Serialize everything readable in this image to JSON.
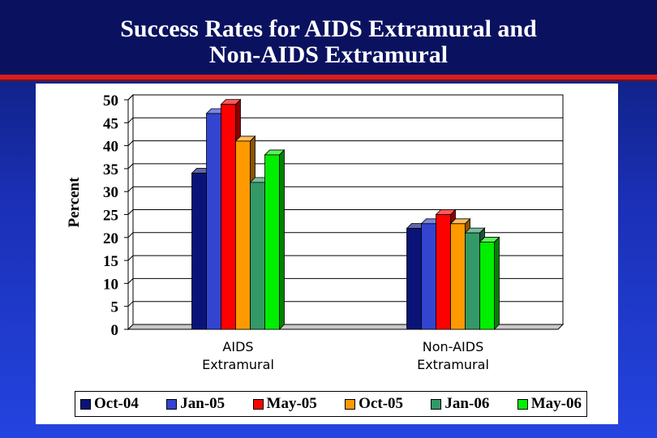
{
  "header": {
    "title_line1": "Success Rates for AIDS Extramural and",
    "title_line2": "Non-AIDS Extramural"
  },
  "colors": {
    "background": "#1a2fb5",
    "title_bar": "#0a1260",
    "rule": "#d81e1e"
  },
  "chart_data": {
    "type": "bar",
    "style": "3d",
    "ylabel": "Percent",
    "xlabel": "",
    "ylim": [
      0,
      50
    ],
    "yticks": [
      0,
      5,
      10,
      15,
      20,
      25,
      30,
      35,
      40,
      45,
      50
    ],
    "grid": true,
    "legend_position": "bottom",
    "categories": [
      [
        "AIDS",
        "Extramural"
      ],
      [
        "Non-AIDS",
        "Extramural"
      ]
    ],
    "series": [
      {
        "name": "Oct-04",
        "color": "#0a1478",
        "values": [
          34,
          22
        ]
      },
      {
        "name": "Jan-05",
        "color": "#3344d0",
        "values": [
          47,
          23
        ]
      },
      {
        "name": "May-05",
        "color": "#ff0000",
        "values": [
          49,
          25
        ]
      },
      {
        "name": "Oct-05",
        "color": "#ff9900",
        "values": [
          41,
          23
        ]
      },
      {
        "name": "Jan-06",
        "color": "#339966",
        "values": [
          32,
          21
        ]
      },
      {
        "name": "May-06",
        "color": "#00ee00",
        "values": [
          38,
          19
        ]
      }
    ]
  }
}
